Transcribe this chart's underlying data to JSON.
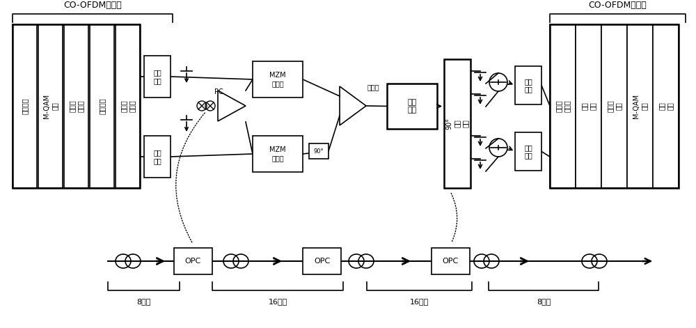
{
  "bg_color": "#ffffff",
  "line_color": "#000000",
  "transmitter_label": "CO-OFDM发射端",
  "receiver_label": "CO-OFDM接收端",
  "tx_blocks": [
    "串并转换",
    "M-QAM\n调制",
    "逆傅里\n叶变换",
    "并串转换",
    "增加循\n环前缀"
  ],
  "dac_label": "数模\n转换",
  "mzm_top": "MZM\n调制器",
  "mzm_bot": "MZM\n调制器",
  "coupler_label": "耦合器",
  "fiber_label": "光纤\n链路",
  "hybrid_label": "90°\n光混\n频器",
  "rx_dac_label": "数模\n转换",
  "rx_blocks": [
    "移除循\n环前缀",
    "串并\n转换",
    "傅里叶\n变换",
    "M-QAM\n解调",
    "并串\n转换"
  ],
  "pc_label": "PC",
  "phase90_label": "90°",
  "opc_label": "OPC",
  "span_labels": [
    "8跨度",
    "16跨度",
    "16跨度",
    "8跨度"
  ],
  "font_size": 7,
  "font_size_small": 6,
  "font_size_title": 9
}
